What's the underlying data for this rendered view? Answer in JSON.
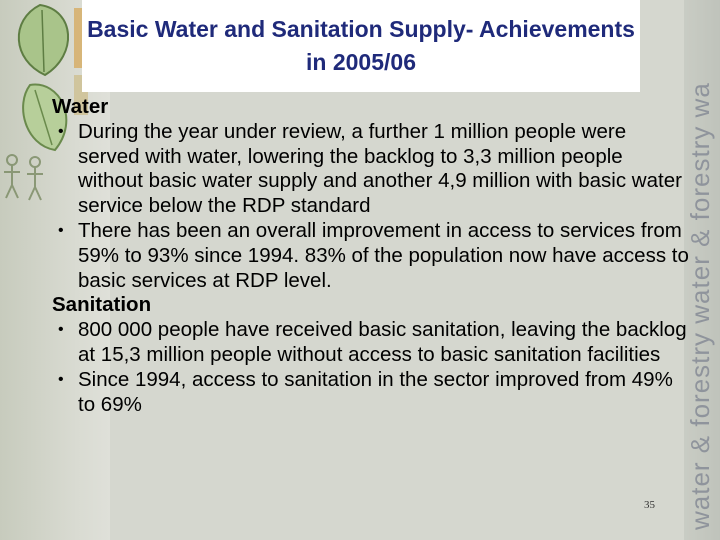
{
  "slide": {
    "title": "Basic Water and Sanitation Supply- Achievements in 2005/06",
    "sidebar_text": "water & forestry   water & forestry   wa",
    "slide_number": "35"
  },
  "sections": [
    {
      "heading": "Water",
      "bullets": [
        "During the year under review, a further 1 million people were served with water, lowering the backlog to 3,3 million people without basic water supply and another 4,9 million with basic water service below the RDP standard",
        "There has been an overall improvement in access to services from 59% to 93% since 1994. 83% of the population now have access to basic services at RDP level."
      ]
    },
    {
      "heading": "Sanitation",
      "bullets": [
        "800 000 people have received basic sanitation, leaving the backlog at 15,3 million people without access to basic sanitation facilities",
        "Since 1994, access to sanitation in the sector improved from  49% to 69%"
      ]
    }
  ],
  "colors": {
    "title": "#1f2a7a",
    "background": "#d5d7cf",
    "sidebar_text": "#8f949c"
  },
  "icons": {
    "bullet": "•",
    "decoration": "leaf-icon"
  }
}
